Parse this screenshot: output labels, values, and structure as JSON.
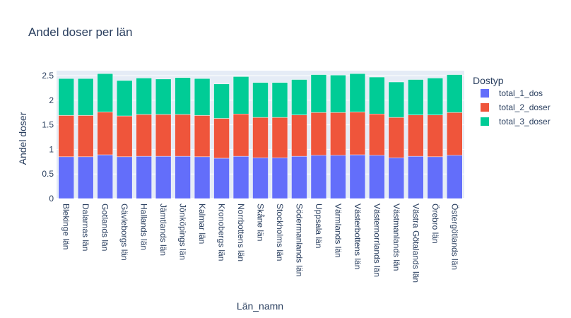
{
  "chart_data": {
    "type": "bar",
    "barmode": "stack",
    "title": "Andel doser per län",
    "xlabel": "Län_namn",
    "ylabel": "Andel doser",
    "ylim": [
      0,
      2.6
    ],
    "yticks": [
      0,
      0.5,
      1,
      1.5,
      2,
      2.5
    ],
    "ytick_labels": [
      "0",
      "0.5",
      "1",
      "1.5",
      "2",
      "2.5"
    ],
    "grid": true,
    "background": "#e5ecf6",
    "legend_title": "Dostyp",
    "legend_position": "top-right",
    "categories": [
      "Blekinge län",
      "Dalarnas län",
      "Gotlands län",
      "Gävleborgs län",
      "Hallands län",
      "Jämtlands län",
      "Jönköpings län",
      "Kalmar län",
      "Kronobergs län",
      "Norrbottens län",
      "Skåne län",
      "Stockholms län",
      "Södermanlands län",
      "Uppsala län",
      "Värmlands län",
      "Västerbottens län",
      "Västernorrlands län",
      "Västmanlands län",
      "Västra Götalands län",
      "Örebro län",
      "Östergötlands län"
    ],
    "series": [
      {
        "name": "total_1_dos",
        "color": "#636efa",
        "values": [
          0.85,
          0.85,
          0.89,
          0.85,
          0.86,
          0.86,
          0.86,
          0.85,
          0.82,
          0.86,
          0.83,
          0.83,
          0.86,
          0.88,
          0.88,
          0.89,
          0.88,
          0.83,
          0.86,
          0.85,
          0.88
        ]
      },
      {
        "name": "total_2_doser",
        "color": "#ef553b",
        "values": [
          0.84,
          0.84,
          0.87,
          0.83,
          0.85,
          0.85,
          0.85,
          0.84,
          0.81,
          0.86,
          0.82,
          0.82,
          0.84,
          0.87,
          0.87,
          0.87,
          0.84,
          0.82,
          0.84,
          0.85,
          0.87
        ]
      },
      {
        "name": "total_3_doser",
        "color": "#00cc96",
        "values": [
          0.75,
          0.75,
          0.78,
          0.72,
          0.74,
          0.72,
          0.75,
          0.75,
          0.7,
          0.76,
          0.71,
          0.71,
          0.72,
          0.77,
          0.76,
          0.78,
          0.75,
          0.72,
          0.72,
          0.75,
          0.77
        ]
      }
    ]
  }
}
